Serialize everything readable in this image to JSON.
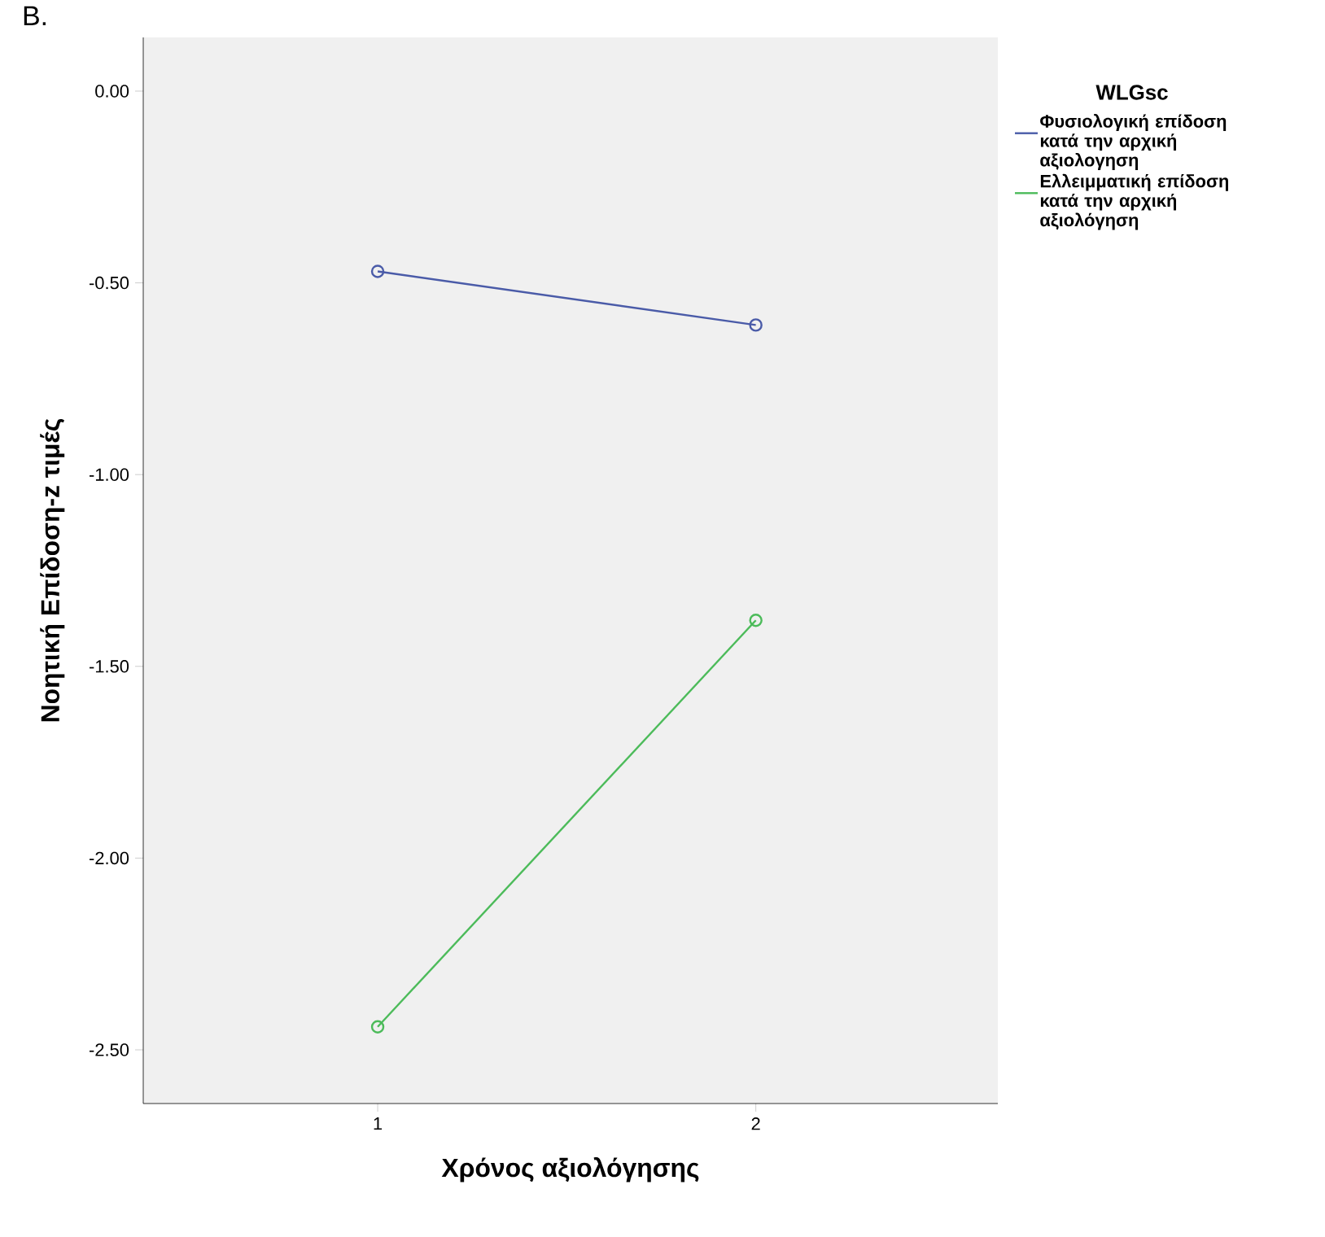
{
  "chart_data": {
    "type": "line",
    "xlabel": "Χρόνος αξιολόγησης",
    "ylabel": "Νοητική Επίδοση-z τιμές",
    "legend_title": "WLGsc",
    "annotations": [
      "B."
    ],
    "x": [
      1,
      2
    ],
    "series": [
      {
        "name": "Φυσιολογική επίδοση κατά την αρχική αξιολογηση",
        "color": "#4a5ba8",
        "values": [
          -0.47,
          -0.61
        ]
      },
      {
        "name": "Ελλειμματική επίδοση κατά την αρχική αξιολόγηση",
        "color": "#4cbb5a",
        "values": [
          -2.44,
          -1.38
        ]
      }
    ],
    "xlim": [
      0.38,
      2.64
    ],
    "xticks": [
      1,
      2
    ],
    "ylim": [
      -2.64,
      0.14
    ],
    "yticks": [
      {
        "value": 0,
        "label": "0.00"
      },
      {
        "value": -0.5,
        "label": "-0.50"
      },
      {
        "value": -1,
        "label": "-1.00"
      },
      {
        "value": -1.5,
        "label": "-1.50"
      },
      {
        "value": -2,
        "label": "-2.00"
      },
      {
        "value": -2.5,
        "label": "-2.50"
      }
    ],
    "legend": "top right",
    "marker": "circle",
    "line_style": "solid",
    "grid": false
  }
}
